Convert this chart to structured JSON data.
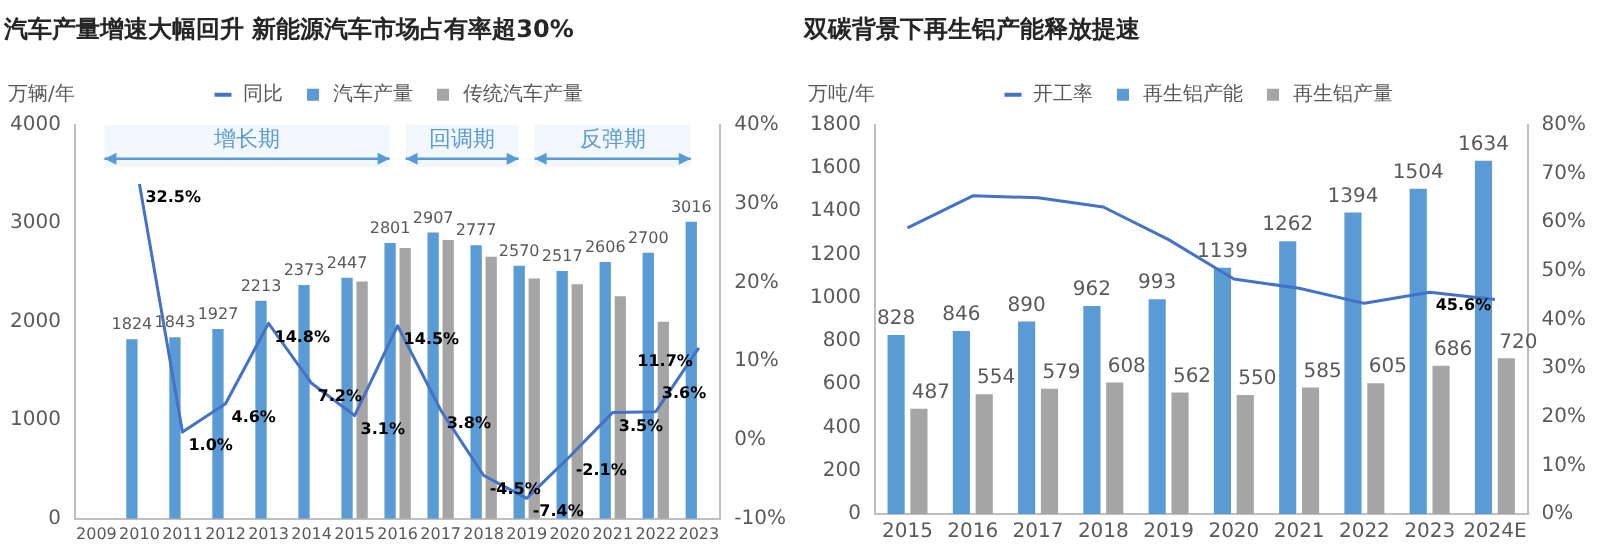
{
  "chart_data": [
    {
      "type": "bar",
      "title": "汽车产量增速大幅回升 新能源汽车市场占有率超30%",
      "ylabel": "万辆/年",
      "legend": "top",
      "categories": [
        "2009",
        "2010",
        "2011",
        "2012",
        "2013",
        "2014",
        "2015",
        "2016",
        "2017",
        "2018",
        "2019",
        "2020",
        "2021",
        "2022",
        "2023"
      ],
      "series": [
        {
          "name": "汽车产量",
          "color": "#5b9bd5",
          "values": [
            null,
            1824,
            1843,
            1927,
            2213,
            2373,
            2447,
            2801,
            2907,
            2777,
            2570,
            2517,
            2606,
            2700,
            3016
          ],
          "value_labels": [
            null,
            "1824",
            "1843",
            "1927",
            "2213",
            "2373",
            "2447",
            "2801",
            "2907",
            "2777",
            "2570",
            "2517",
            "2606",
            "2700",
            "3016"
          ]
        },
        {
          "name": "传统汽车产量",
          "color": "#a5a5a5",
          "values": [
            null,
            null,
            null,
            null,
            null,
            null,
            2410,
            2750,
            2830,
            2660,
            2440,
            2380,
            2260,
            2000,
            null
          ]
        },
        {
          "name": "同比",
          "type": "line",
          "axis": "y2",
          "color": "#4472c4",
          "marker": "none",
          "values": [
            null,
            32.5,
            1.0,
            4.6,
            14.8,
            7.2,
            3.1,
            14.5,
            3.8,
            -4.5,
            -7.4,
            -2.1,
            3.5,
            3.6,
            11.7
          ],
          "value_labels": [
            null,
            "32.5%",
            "1.0%",
            "4.6%",
            "14.8%",
            "7.2%",
            "3.1%",
            "14.5%",
            "3.8%",
            "-4.5%",
            "-7.4%",
            "-2.1%",
            "3.5%",
            "3.6%",
            "11.7%"
          ]
        }
      ],
      "ylim": [
        0,
        4000
      ],
      "yticks": [
        0,
        1000,
        2000,
        3000,
        4000
      ],
      "y2lim": [
        -10,
        40
      ],
      "y2ticks": [
        {
          "value": -10,
          "label": "-10%"
        },
        {
          "value": 0,
          "label": "0%"
        },
        {
          "value": 10,
          "label": "10%"
        },
        {
          "value": 20,
          "label": "20%"
        },
        {
          "value": 30,
          "label": "30%"
        },
        {
          "value": 40,
          "label": "40%"
        }
      ],
      "bands": [
        {
          "axis": "x",
          "from": "2009",
          "to": "2016",
          "label": "增长期",
          "color": "#5b9bd5"
        },
        {
          "axis": "x",
          "from": "2016",
          "to": "2019",
          "label": "回调期",
          "color": "#5b9bd5"
        },
        {
          "axis": "x",
          "from": "2019",
          "to": "2023",
          "label": "反弹期",
          "color": "#5b9bd5"
        }
      ]
    },
    {
      "type": "bar",
      "title": "双碳背景下再生铝产能释放提速",
      "ylabel": "万吨/年",
      "legend": "top",
      "categories": [
        "2015",
        "2016",
        "2017",
        "2018",
        "2019",
        "2020",
        "2021",
        "2022",
        "2023",
        "2024E"
      ],
      "series": [
        {
          "name": "再生铝产能",
          "color": "#5b9bd5",
          "values": [
            828,
            846,
            890,
            962,
            993,
            1139,
            1262,
            1394,
            1504,
            1634
          ],
          "value_labels": [
            "828",
            "846",
            "890",
            "962",
            "993",
            "1139",
            "1262",
            "1394",
            "1504",
            "1634"
          ]
        },
        {
          "name": "再生铝产量",
          "color": "#a5a5a5",
          "values": [
            487,
            554,
            579,
            608,
            562,
            550,
            585,
            605,
            686,
            720
          ],
          "value_labels": [
            "487",
            "554",
            "579",
            "608",
            "562",
            "550",
            "585",
            "605",
            "686",
            "720"
          ]
        },
        {
          "name": "开工率",
          "type": "line",
          "axis": "y2",
          "color": "#4472c4",
          "marker": "none",
          "values": [
            58.8,
            65.4,
            65.0,
            63.1,
            56.4,
            48.3,
            46.4,
            43.3,
            45.6,
            44.1
          ],
          "value_labels": [
            null,
            null,
            null,
            null,
            null,
            null,
            null,
            null,
            "45.6%",
            null
          ]
        }
      ],
      "ylim": [
        0,
        1800
      ],
      "yticks": [
        0,
        200,
        400,
        600,
        800,
        1000,
        1200,
        1400,
        1600,
        1800
      ],
      "y2lim": [
        0,
        80
      ],
      "y2ticks": [
        {
          "value": 0,
          "label": "0%"
        },
        {
          "value": 10,
          "label": "10%"
        },
        {
          "value": 20,
          "label": "20%"
        },
        {
          "value": 30,
          "label": "30%"
        },
        {
          "value": 40,
          "label": "40%"
        },
        {
          "value": 50,
          "label": "50%"
        },
        {
          "value": 60,
          "label": "60%"
        },
        {
          "value": 70,
          "label": "70%"
        },
        {
          "value": 80,
          "label": "80%"
        }
      ]
    }
  ]
}
